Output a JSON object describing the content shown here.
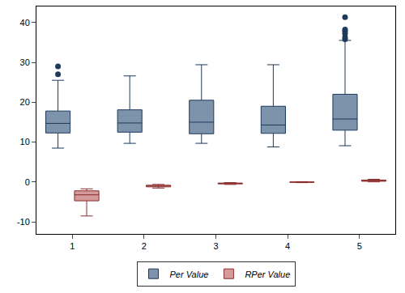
{
  "chart_data": {
    "type": "box",
    "categories": [
      "1",
      "2",
      "3",
      "4",
      "5"
    ],
    "series": [
      {
        "name": "Per Value",
        "color": "#7d93ac",
        "lowerfence": [
          8.5,
          9.7,
          9.7,
          8.8,
          9.1
        ],
        "q1": [
          12.3,
          12.5,
          12.1,
          12.2,
          13.0
        ],
        "median": [
          14.7,
          14.8,
          15.0,
          14.3,
          15.8
        ],
        "q3": [
          17.8,
          18.1,
          20.5,
          19.0,
          22.0
        ],
        "upperfence": [
          25.5,
          26.6,
          29.4,
          29.4,
          35.5
        ],
        "outliers": [
          [
            27.0,
            29.0
          ],
          [],
          [],
          [],
          [
            35.8,
            36.3,
            37.2,
            37.8,
            38.2,
            41.3
          ]
        ]
      },
      {
        "name": "RPer Value",
        "color": "#d49a9a",
        "lowerfence": [
          -8.5,
          -1.5,
          -0.6,
          -0.15,
          0.05
        ],
        "q1": [
          -4.7,
          -1.2,
          -0.45,
          -0.08,
          0.2
        ],
        "median": [
          -3.2,
          -1.0,
          -0.35,
          -0.03,
          0.35
        ],
        "q3": [
          -2.2,
          -0.8,
          -0.25,
          0.02,
          0.5
        ],
        "upperfence": [
          -1.7,
          -0.6,
          -0.15,
          0.08,
          0.7
        ],
        "outliers": [
          [],
          [],
          [],
          [],
          []
        ]
      }
    ],
    "ylim": [
      -13,
      44
    ],
    "yticks": [
      -10,
      0,
      10,
      20,
      30,
      40
    ],
    "grid": false,
    "legend": "bottom"
  }
}
